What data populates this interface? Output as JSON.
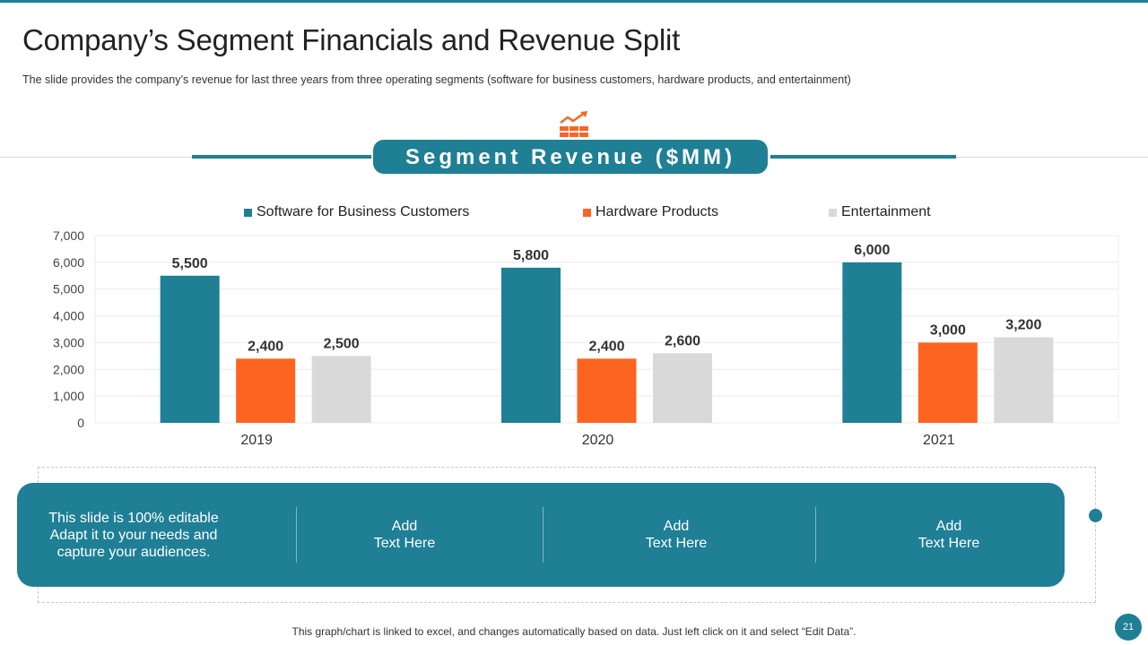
{
  "title": "Company’s Segment Financials and Revenue Split",
  "subtitle": "The slide provides  the company’s revenue  for last three years from three operating segments (software for business customers, hardware  products, and entertainment)",
  "banner": "Segment Revenue ($MM)",
  "colors": {
    "teal": "#1e7f95",
    "orange": "#fd6420",
    "gray": "#d9d9d9"
  },
  "chart_data": {
    "type": "bar",
    "categories": [
      "2019",
      "2020",
      "2021"
    ],
    "series": [
      {
        "name": "Software for Business Customers",
        "color": "#1e7f95",
        "values": [
          5500,
          5800,
          6000
        ],
        "labels": [
          "5,500",
          "5,800",
          "6,000"
        ]
      },
      {
        "name": "Hardware Products",
        "color": "#fd6420",
        "values": [
          2400,
          2400,
          3000
        ],
        "labels": [
          "2,400",
          "2,400",
          "3,000"
        ]
      },
      {
        "name": "Entertainment",
        "color": "#d9d9d9",
        "values": [
          2500,
          2600,
          3200
        ],
        "labels": [
          "2,500",
          "2,600",
          "3,200"
        ]
      }
    ],
    "ylim": [
      0,
      7000
    ],
    "yticks": [
      0,
      1000,
      2000,
      3000,
      4000,
      5000,
      6000,
      7000
    ],
    "ytick_labels": [
      "0",
      "1,000",
      "2,000",
      "3,000",
      "4,000",
      "5,000",
      "6,000",
      "7,000"
    ],
    "legend_position": "top",
    "title": "",
    "xlabel": "",
    "ylabel": ""
  },
  "panel": {
    "cells": [
      "This slide is 100% editable\nAdapt it to your needs and\ncapture your audiences.",
      "Add\nText Here",
      "Add\nText Here",
      "Add\nText Here"
    ]
  },
  "footer": "This graph/chart is linked to excel,  and changes automatically based on data. Just left click on it and select “Edit Data”.",
  "page_number": "21"
}
